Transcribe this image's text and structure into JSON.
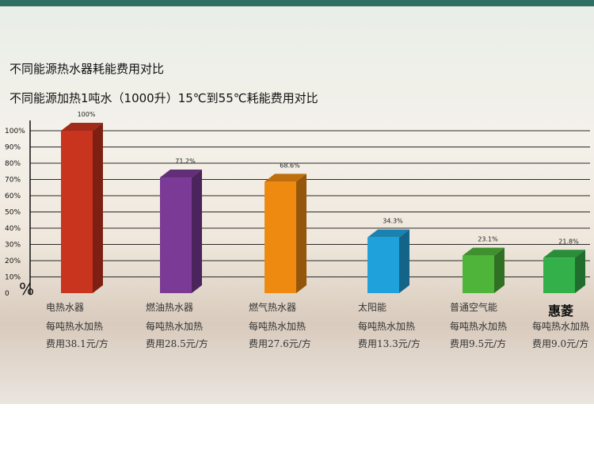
{
  "chart_data": {
    "type": "bar",
    "title": "不同能源热水器耗能费用对比",
    "subtitle": "不同能源加热1吨水（1000升）15℃到55℃耗能费用对比",
    "ylabel": "%",
    "ylim": [
      0,
      100
    ],
    "yticks": [
      "0",
      "10%",
      "20%",
      "30%",
      "40%",
      "50%",
      "60%",
      "70%",
      "80%",
      "90%",
      "100%"
    ],
    "grid": true,
    "categories": [
      "电热水器",
      "燃油热水器",
      "燃气热水器",
      "太阳能",
      "普通空气能",
      "惠菱"
    ],
    "values": [
      100,
      71.2,
      68.6,
      34.3,
      23.1,
      21.8
    ],
    "value_labels": [
      "100%",
      "71.2%",
      "68.6%",
      "34.3%",
      "23.1%",
      "21.8%"
    ],
    "colors": [
      "#c9341e",
      "#7b3a96",
      "#ef8a10",
      "#1fa2dc",
      "#4fb53a",
      "#33b049"
    ],
    "descriptions": [
      [
        "每吨热水加热",
        "费用38.1元/方"
      ],
      [
        "每吨热水加热",
        "费用28.5元/方"
      ],
      [
        "每吨热水加热",
        "费用27.6元/方"
      ],
      [
        "每吨热水加热",
        "费用13.3元/方"
      ],
      [
        "每吨热水加热",
        "费用9.5元/方"
      ],
      [
        "每吨热水加热",
        "费用9.0元/方"
      ]
    ]
  }
}
